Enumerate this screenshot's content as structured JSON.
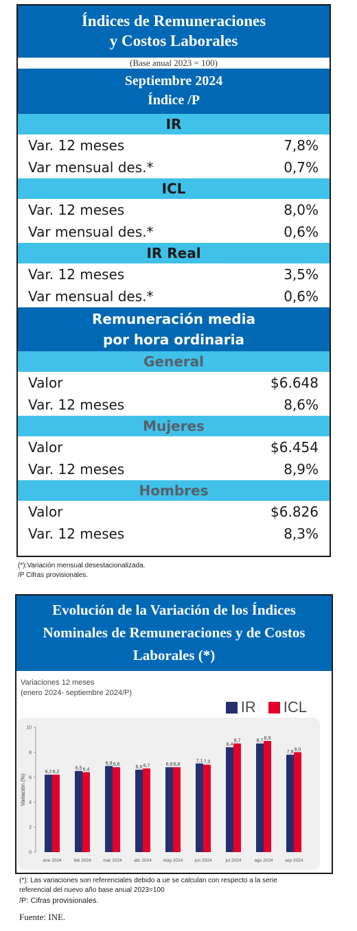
{
  "table": {
    "title_line1": "Índices de Remuneraciones",
    "title_line2": "y Costos Laborales",
    "base": "(Base anual 2023 = 100)",
    "period": "Septiembre 2024",
    "index_label": "Índice /P",
    "sections": [
      {
        "name": "IR",
        "rows": [
          {
            "label": "Var. 12 meses",
            "value": "7,8%"
          },
          {
            "label": "Var mensual des.*",
            "value": "0,7%"
          }
        ]
      },
      {
        "name": "ICL",
        "rows": [
          {
            "label": "Var. 12 meses",
            "value": "8,0%"
          },
          {
            "label": "Var mensual des.*",
            "value": "0,6%"
          }
        ]
      },
      {
        "name": "IR Real",
        "rows": [
          {
            "label": "Var. 12 meses",
            "value": "3,5%"
          },
          {
            "label": "Var mensual des.*",
            "value": "0,6%"
          }
        ]
      }
    ],
    "remuneracion_line1": "Remuneración media",
    "remuneracion_line2": "por hora ordinaria",
    "groups": [
      {
        "name": "General",
        "rows": [
          {
            "label": "Valor",
            "value": "$6.648"
          },
          {
            "label": "Var. 12 meses",
            "value": "8,6%"
          }
        ]
      },
      {
        "name": "Mujeres",
        "rows": [
          {
            "label": "Valor",
            "value": "$6.454"
          },
          {
            "label": "Var. 12 meses",
            "value": "8,9%"
          }
        ]
      },
      {
        "name": "Hombres",
        "rows": [
          {
            "label": "Valor",
            "value": "$6.826"
          },
          {
            "label": "Var. 12 meses",
            "value": "8,3%"
          }
        ]
      }
    ],
    "note1": "(*):Variación mensual desestacionalizada.",
    "note2": "/P Cifras provisionales."
  },
  "chart_card": {
    "title_line1": "Evolución de la Variación de los Índices",
    "title_line2": "Nominales de Remuneraciones y de Costos",
    "title_line3": "Laborales (*)",
    "subtitle_line1": "Variaciones 12 meses",
    "subtitle_line2": "(enero 2024- septiembre 2024/P)",
    "note1": "(*): Las variaciones son referenciales debido a ue se calculan con respecto a la serie",
    "note2": "referencial del nuevo año base anual 2023=100",
    "note3": "/P: Cifras provisionales.",
    "source": "Fuente: INE."
  },
  "colors": {
    "ir": "#24306e",
    "icl": "#e4002b",
    "header_blue": "#0068b4",
    "band_cyan": "#40c1ea"
  },
  "chart_data": {
    "type": "bar",
    "categories": [
      "ene 2024",
      "feb 2024",
      "mar 2024",
      "abr 2024",
      "may 2024",
      "jun 2024",
      "jul 2024",
      "ago 2024",
      "sep 2024"
    ],
    "series": [
      {
        "name": "IR",
        "values": [
          6.2,
          6.5,
          6.9,
          6.6,
          6.8,
          7.1,
          8.4,
          8.7,
          7.8
        ],
        "labels": [
          "6,2",
          "6,5",
          "6,9",
          "6,6",
          "6,8",
          "7,1",
          "8,4",
          "8,7",
          "7,8"
        ]
      },
      {
        "name": "ICL",
        "values": [
          6.2,
          6.4,
          6.8,
          6.7,
          6.8,
          7.0,
          8.7,
          8.9,
          8.0
        ],
        "labels": [
          "6,2",
          "6,4",
          "6,8",
          "6,7",
          "6,8",
          "7,0",
          "8,7",
          "8,9",
          "8,0"
        ]
      }
    ],
    "ylabel": "Variación (%)",
    "ylim": [
      0,
      10
    ],
    "yticks": [
      0,
      2,
      4,
      6,
      8,
      10
    ],
    "grid": false,
    "legend": "top-right"
  }
}
